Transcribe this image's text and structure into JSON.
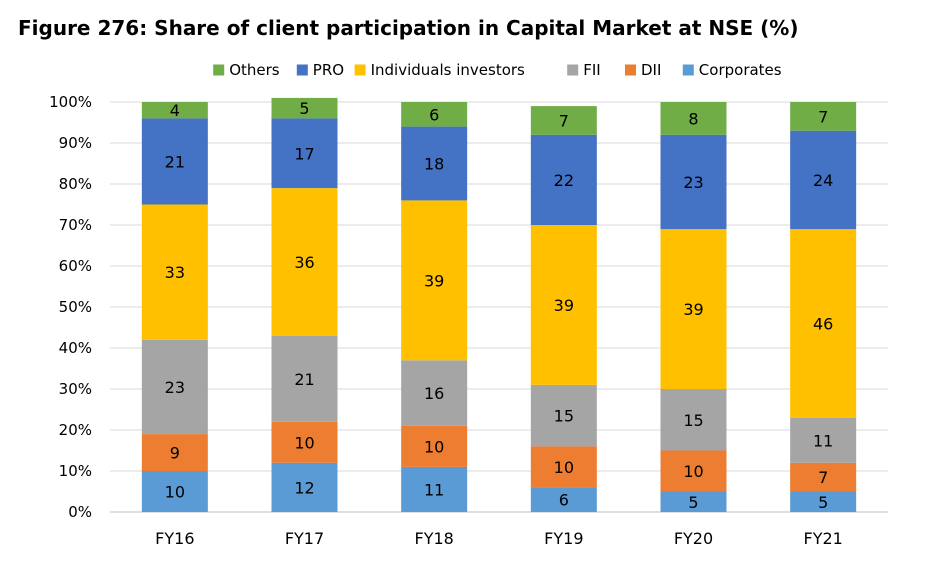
{
  "title": "Figure 276: Share of client participation in Capital Market at NSE (%)",
  "chart_data": {
    "type": "bar",
    "stacked": true,
    "categories": [
      "FY16",
      "FY17",
      "FY18",
      "FY19",
      "FY20",
      "FY21"
    ],
    "series": [
      {
        "name": "Corporates",
        "color": "#5B9BD5",
        "values": [
          10,
          12,
          11,
          6,
          5,
          5
        ]
      },
      {
        "name": "DII",
        "color": "#ED7D31",
        "values": [
          9,
          10,
          10,
          10,
          10,
          7
        ]
      },
      {
        "name": "FII",
        "color": "#A5A5A5",
        "values": [
          23,
          21,
          16,
          15,
          15,
          11
        ]
      },
      {
        "name": "Individuals investors",
        "color": "#FFC000",
        "values": [
          33,
          36,
          39,
          39,
          39,
          46
        ]
      },
      {
        "name": "PRO",
        "color": "#4472C4",
        "values": [
          21,
          17,
          18,
          22,
          23,
          24
        ]
      },
      {
        "name": "Others",
        "color": "#70AD47",
        "values": [
          4,
          5,
          6,
          7,
          8,
          7
        ]
      }
    ],
    "legend_order": [
      "Others",
      "PRO",
      "Individuals investors",
      "FII",
      "DII",
      "Corporates"
    ],
    "yticks": [
      "0%",
      "10%",
      "20%",
      "30%",
      "40%",
      "50%",
      "60%",
      "70%",
      "80%",
      "90%",
      "100%"
    ],
    "ylim": [
      0,
      100
    ],
    "legend_position": "top",
    "grid": true
  }
}
